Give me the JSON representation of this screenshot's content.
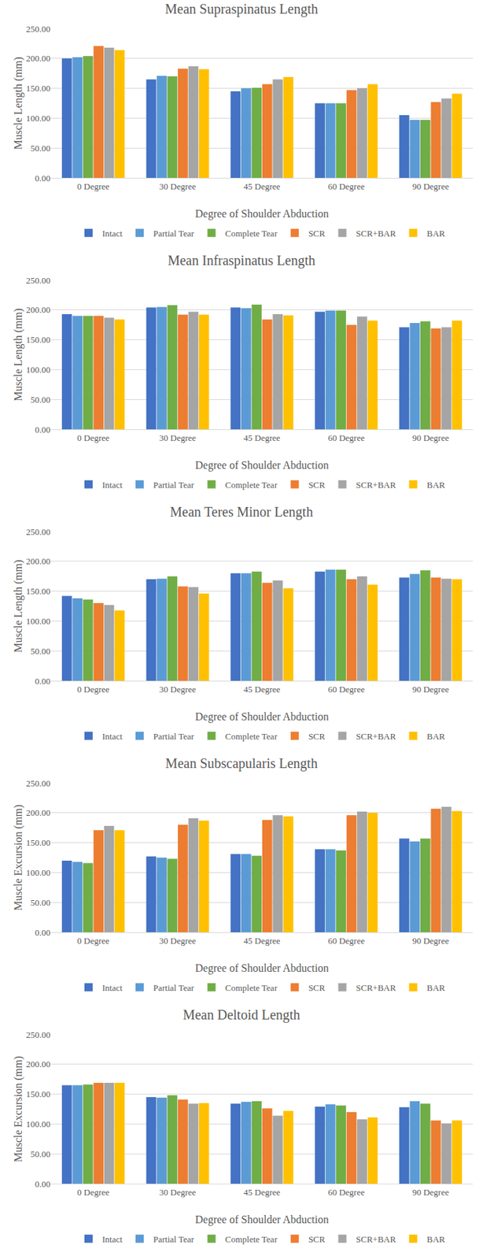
{
  "chart_data": [
    {
      "type": "bar",
      "title": "Mean Supraspinatus Length",
      "x_label": "Degree of Shoulder Abduction",
      "y_label": "Muscle Length (mm)",
      "categories": [
        "0 Degree",
        "30 Degree",
        "45 Degree",
        "60 Degree",
        "90 Degree"
      ],
      "series": [
        {
          "name": "Intact",
          "color": "#4472c4",
          "values": [
            200,
            165,
            145,
            125,
            105
          ]
        },
        {
          "name": "Partial Tear",
          "color": "#5b9bd5",
          "values": [
            202,
            171,
            150,
            125,
            97
          ]
        },
        {
          "name": "Complete Tear",
          "color": "#70ad47",
          "values": [
            204,
            170,
            151,
            125,
            97
          ]
        },
        {
          "name": "SCR",
          "color": "#ed7d31",
          "values": [
            221,
            183,
            157,
            147,
            127
          ]
        },
        {
          "name": "SCR+BAR",
          "color": "#a5a5a5",
          "values": [
            218,
            187,
            165,
            150,
            133
          ]
        },
        {
          "name": "BAR",
          "color": "#ffc000",
          "values": [
            214,
            182,
            169,
            157,
            141
          ]
        }
      ],
      "ylim": [
        0,
        250
      ],
      "yticks": [
        {
          "value": 0,
          "label": "0.00"
        },
        {
          "value": 50,
          "label": "50.00"
        },
        {
          "value": 100,
          "label": "100.00"
        },
        {
          "value": 150,
          "label": "150.00"
        },
        {
          "value": 200,
          "label": "200.00"
        },
        {
          "value": 250,
          "label": "250.00"
        }
      ],
      "grid": true,
      "legend": "bottom"
    },
    {
      "type": "bar",
      "title": "Mean Infraspinatus Length",
      "x_label": "Degree of Shoulder Abduction",
      "y_label": "Muscle Length (mm)",
      "categories": [
        "0 Degree",
        "30 Degree",
        "45 Degree",
        "60 Degree",
        "90 Degree"
      ],
      "series": [
        {
          "name": "Intact",
          "color": "#4472c4",
          "values": [
            193,
            204,
            204,
            197,
            171
          ]
        },
        {
          "name": "Partial Tear",
          "color": "#5b9bd5",
          "values": [
            190,
            205,
            203,
            199,
            178
          ]
        },
        {
          "name": "Complete Tear",
          "color": "#70ad47",
          "values": [
            190,
            208,
            209,
            199,
            181
          ]
        },
        {
          "name": "SCR",
          "color": "#ed7d31",
          "values": [
            190,
            192,
            184,
            175,
            169
          ]
        },
        {
          "name": "SCR+BAR",
          "color": "#a5a5a5",
          "values": [
            187,
            197,
            193,
            189,
            171
          ]
        },
        {
          "name": "BAR",
          "color": "#ffc000",
          "values": [
            184,
            192,
            191,
            182,
            182
          ]
        }
      ],
      "ylim": [
        0,
        250
      ],
      "yticks": [
        {
          "value": 0,
          "label": "0.00"
        },
        {
          "value": 50,
          "label": "50.00"
        },
        {
          "value": 100,
          "label": "100.00"
        },
        {
          "value": 150,
          "label": "150.00"
        },
        {
          "value": 200,
          "label": "200.00"
        },
        {
          "value": 250,
          "label": "250.00"
        }
      ],
      "grid": true,
      "legend": "bottom"
    },
    {
      "type": "bar",
      "title": "Mean Teres Minor Length",
      "x_label": "Degree of Shoulder Abduction",
      "y_label": "Muscle Length (mm)",
      "categories": [
        "0 Degree",
        "30 Degree",
        "45 Degree",
        "60 Degree",
        "90 Degree"
      ],
      "series": [
        {
          "name": "Intact",
          "color": "#4472c4",
          "values": [
            142,
            170,
            180,
            183,
            173
          ]
        },
        {
          "name": "Partial Tear",
          "color": "#5b9bd5",
          "values": [
            138,
            171,
            180,
            186,
            179
          ]
        },
        {
          "name": "Complete Tear",
          "color": "#70ad47",
          "values": [
            136,
            175,
            183,
            186,
            185
          ]
        },
        {
          "name": "SCR",
          "color": "#ed7d31",
          "values": [
            130,
            158,
            164,
            170,
            173
          ]
        },
        {
          "name": "SCR+BAR",
          "color": "#a5a5a5",
          "values": [
            127,
            157,
            168,
            175,
            171
          ]
        },
        {
          "name": "BAR",
          "color": "#ffc000",
          "values": [
            118,
            146,
            155,
            161,
            170
          ]
        }
      ],
      "ylim": [
        0,
        250
      ],
      "yticks": [
        {
          "value": 0,
          "label": "0.00"
        },
        {
          "value": 50,
          "label": "50.00"
        },
        {
          "value": 100,
          "label": "100.00"
        },
        {
          "value": 150,
          "label": "150.00"
        },
        {
          "value": 200,
          "label": "200.00"
        },
        {
          "value": 250,
          "label": "250.00"
        }
      ],
      "grid": true,
      "legend": "bottom"
    },
    {
      "type": "bar",
      "title": "Mean Subscapularis Length",
      "x_label": "Degree of Shoulder Abduction",
      "y_label": "Muscle Excursion (mm)",
      "categories": [
        "0 Degree",
        "30 Degree",
        "45 Degree",
        "60 Degree",
        "90 Degree"
      ],
      "series": [
        {
          "name": "Intact",
          "color": "#4472c4",
          "values": [
            120,
            127,
            131,
            139,
            157
          ]
        },
        {
          "name": "Partial Tear",
          "color": "#5b9bd5",
          "values": [
            118,
            125,
            131,
            139,
            152
          ]
        },
        {
          "name": "Complete Tear",
          "color": "#70ad47",
          "values": [
            116,
            123,
            128,
            137,
            157
          ]
        },
        {
          "name": "SCR",
          "color": "#ed7d31",
          "values": [
            171,
            180,
            188,
            196,
            207
          ]
        },
        {
          "name": "SCR+BAR",
          "color": "#a5a5a5",
          "values": [
            178,
            191,
            196,
            202,
            210
          ]
        },
        {
          "name": "BAR",
          "color": "#ffc000",
          "values": [
            171,
            187,
            194,
            200,
            203
          ]
        }
      ],
      "ylim": [
        0,
        250
      ],
      "yticks": [
        {
          "value": 0,
          "label": "0.00"
        },
        {
          "value": 50,
          "label": "50.00"
        },
        {
          "value": 100,
          "label": "100.00"
        },
        {
          "value": 150,
          "label": "150.00"
        },
        {
          "value": 200,
          "label": "200.00"
        },
        {
          "value": 250,
          "label": "250.00"
        }
      ],
      "grid": true,
      "legend": "bottom"
    },
    {
      "type": "bar",
      "title": "Mean Deltoid Length",
      "x_label": "Degree of Shoulder Abduction",
      "y_label": "Muscle Excursion (mm)",
      "categories": [
        "0 Degree",
        "30 Degree",
        "45 Degree",
        "60 Degree",
        "90 Degree"
      ],
      "series": [
        {
          "name": "Intact",
          "color": "#4472c4",
          "values": [
            165,
            145,
            134,
            129,
            128
          ]
        },
        {
          "name": "Partial Tear",
          "color": "#5b9bd5",
          "values": [
            165,
            144,
            137,
            133,
            138
          ]
        },
        {
          "name": "Complete Tear",
          "color": "#70ad47",
          "values": [
            166,
            148,
            138,
            131,
            134
          ]
        },
        {
          "name": "SCR",
          "color": "#ed7d31",
          "values": [
            169,
            141,
            126,
            120,
            106
          ]
        },
        {
          "name": "SCR+BAR",
          "color": "#a5a5a5",
          "values": [
            169,
            134,
            114,
            108,
            101
          ]
        },
        {
          "name": "BAR",
          "color": "#ffc000",
          "values": [
            169,
            135,
            122,
            111,
            106
          ]
        }
      ],
      "ylim": [
        0,
        250
      ],
      "yticks": [
        {
          "value": 0,
          "label": "0.00"
        },
        {
          "value": 50,
          "label": "50.00"
        },
        {
          "value": 100,
          "label": "100.00"
        },
        {
          "value": 150,
          "label": "150.00"
        },
        {
          "value": 200,
          "label": "200.00"
        },
        {
          "value": 250,
          "label": "250.00"
        }
      ],
      "grid": true,
      "legend": "bottom"
    }
  ]
}
